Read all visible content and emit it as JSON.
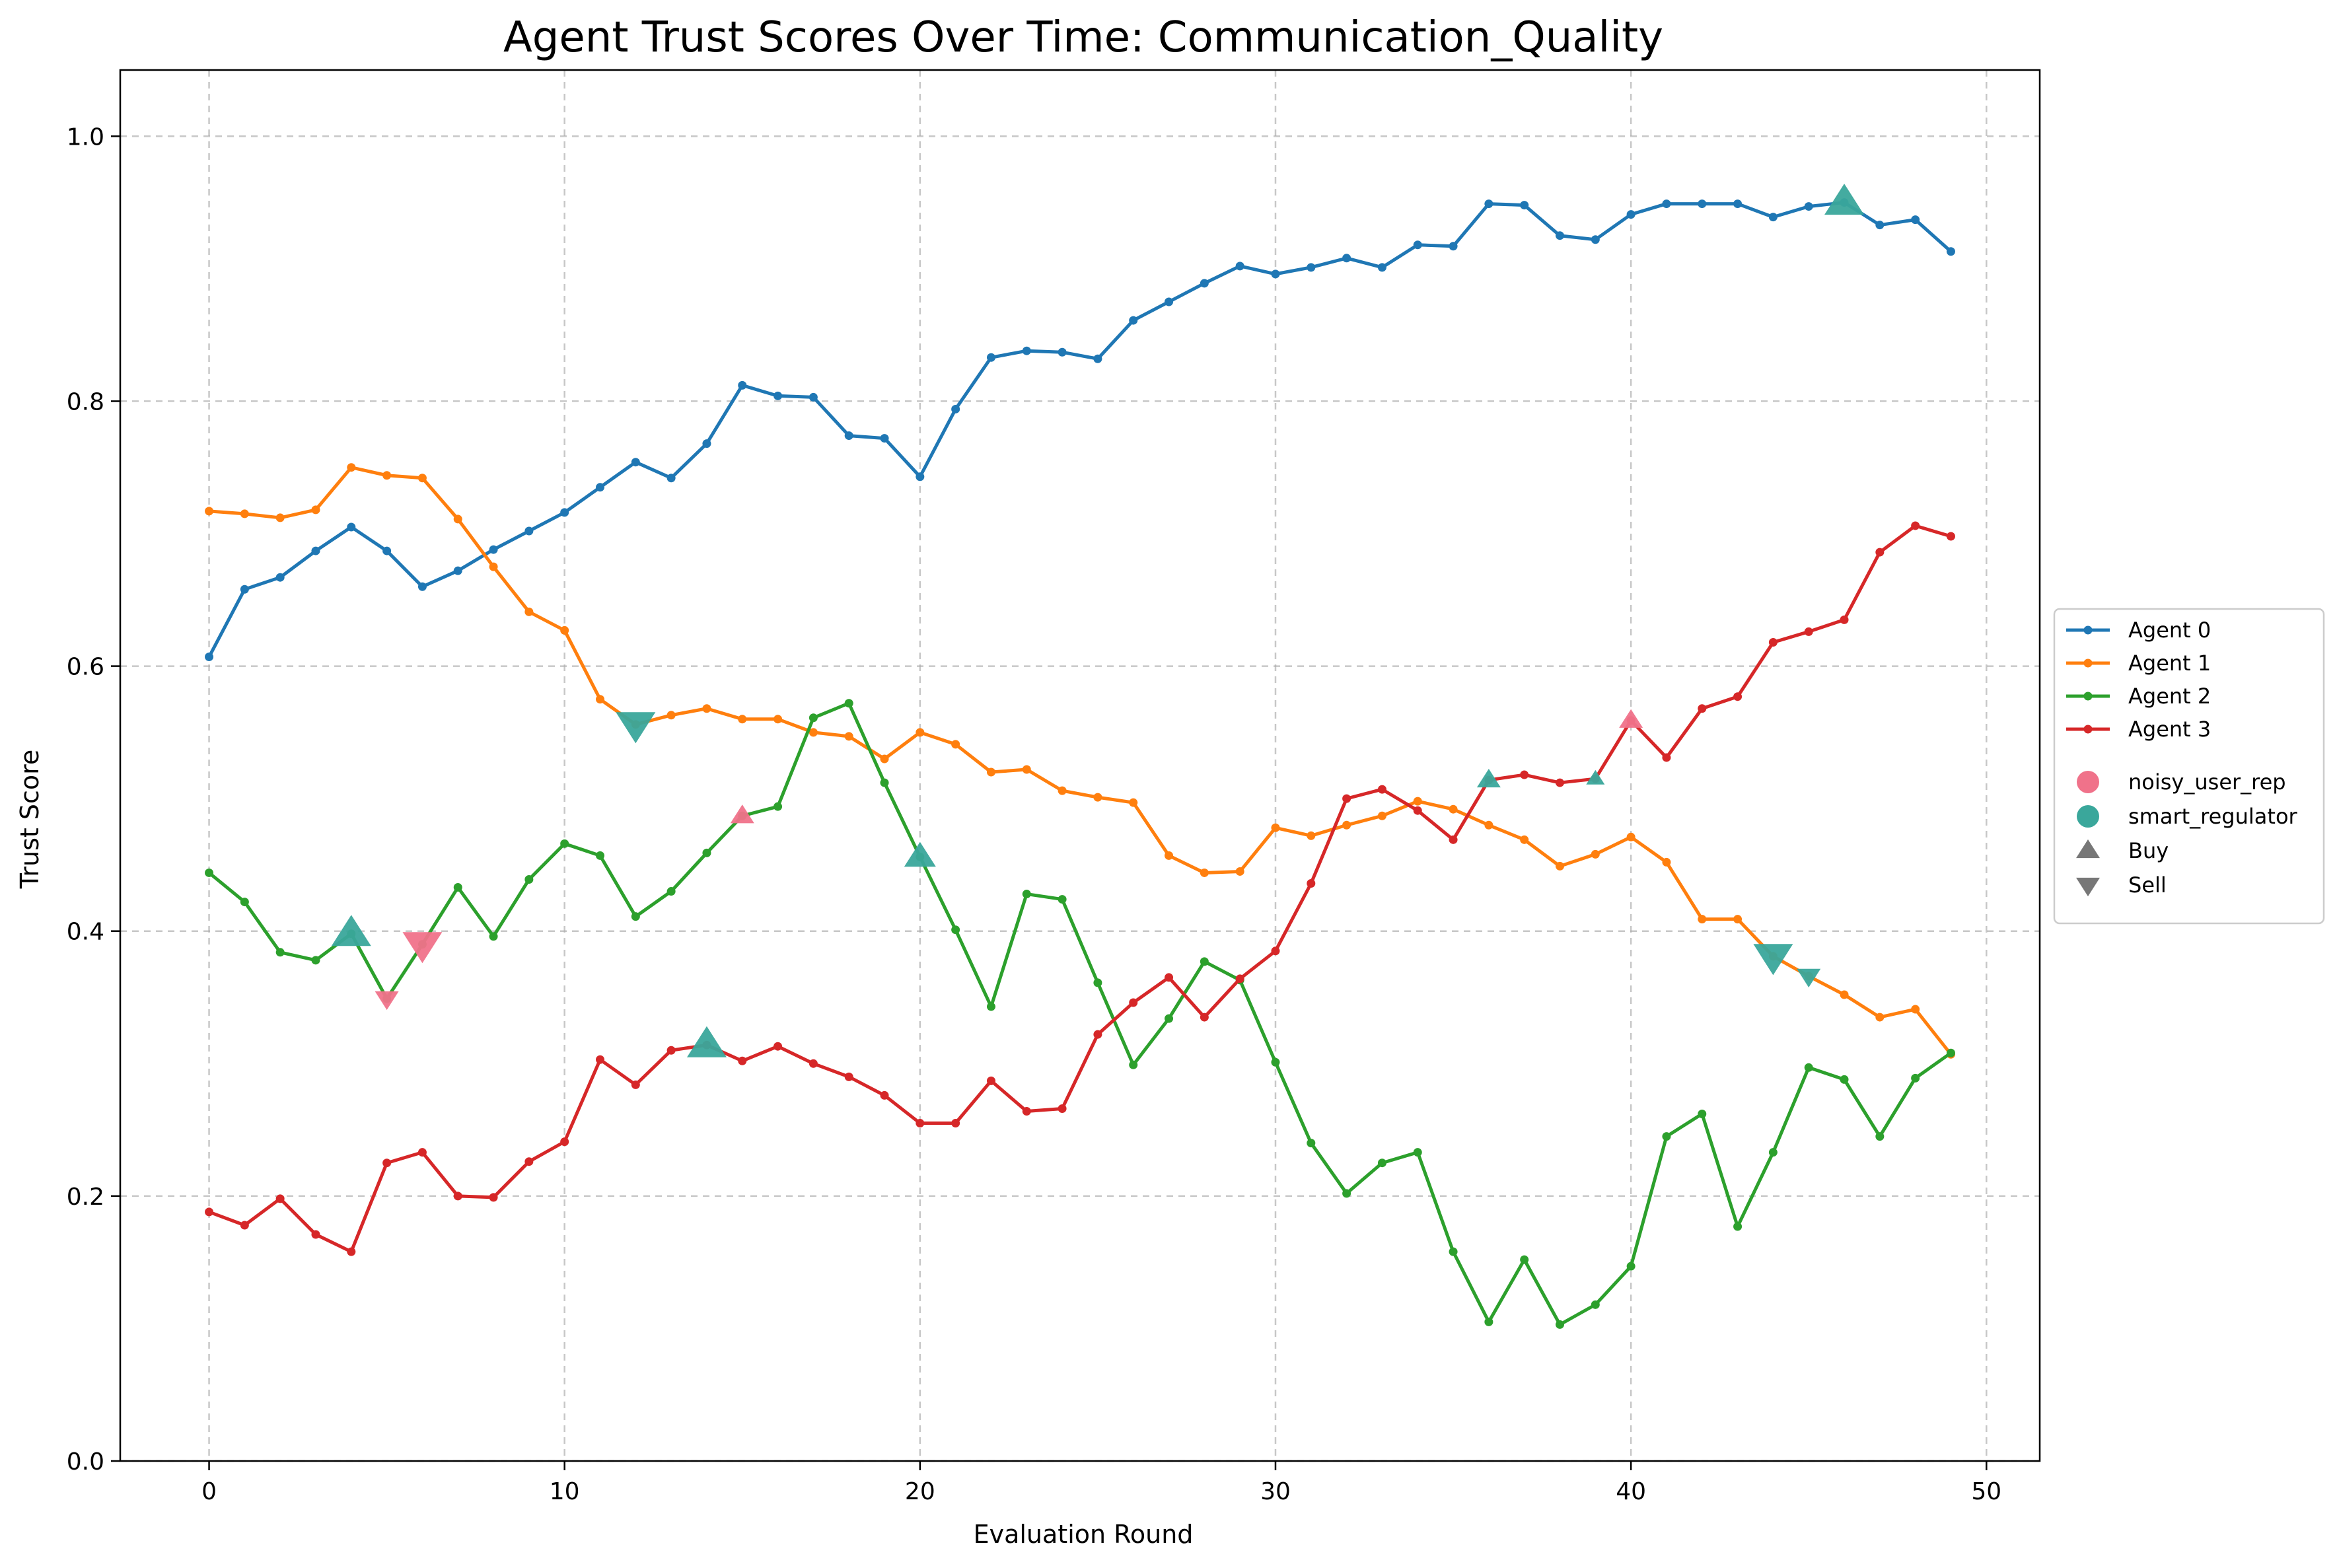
{
  "chart_data": {
    "type": "line",
    "title": "Agent Trust Scores Over Time: Communication_Quality",
    "xlabel": "Evaluation Round",
    "ylabel": "Trust Score",
    "xlim": [
      -2.5,
      51.5
    ],
    "ylim": [
      0.0,
      1.05
    ],
    "xticks": [
      0,
      10,
      20,
      30,
      40,
      50
    ],
    "yticks": [
      0.0,
      0.2,
      0.4,
      0.6,
      0.8,
      1.0
    ],
    "xtick_labels": [
      "0",
      "10",
      "20",
      "30",
      "40",
      "50"
    ],
    "ytick_labels": [
      "0.0",
      "0.2",
      "0.4",
      "0.6",
      "0.8",
      "1.0"
    ],
    "grid": true,
    "legend_position": "right-center outside",
    "x": [
      0,
      1,
      2,
      3,
      4,
      5,
      6,
      7,
      8,
      9,
      10,
      11,
      12,
      13,
      14,
      15,
      16,
      17,
      18,
      19,
      20,
      21,
      22,
      23,
      24,
      25,
      26,
      27,
      28,
      29,
      30,
      31,
      32,
      33,
      34,
      35,
      36,
      37,
      38,
      39,
      40,
      41,
      42,
      43,
      44,
      45,
      46,
      47,
      48,
      49
    ],
    "series": [
      {
        "name": "Agent 0",
        "color": "#1f77b4",
        "values": [
          0.607,
          0.658,
          0.667,
          0.687,
          0.705,
          0.687,
          0.66,
          0.672,
          0.688,
          0.702,
          0.716,
          0.735,
          0.754,
          0.742,
          0.768,
          0.812,
          0.804,
          0.803,
          0.774,
          0.772,
          0.743,
          0.794,
          0.833,
          0.838,
          0.837,
          0.832,
          0.861,
          0.875,
          0.889,
          0.902,
          0.896,
          0.901,
          0.908,
          0.901,
          0.918,
          0.917,
          0.949,
          0.948,
          0.925,
          0.922,
          0.941,
          0.949,
          0.949,
          0.949,
          0.939,
          0.947,
          0.95,
          0.933,
          0.937,
          0.913
        ]
      },
      {
        "name": "Agent 1",
        "color": "#ff7f0e",
        "values": [
          0.717,
          0.715,
          0.712,
          0.718,
          0.75,
          0.744,
          0.742,
          0.711,
          0.675,
          0.641,
          0.627,
          0.575,
          0.556,
          0.563,
          0.568,
          0.56,
          0.56,
          0.55,
          0.547,
          0.53,
          0.55,
          0.541,
          0.52,
          0.522,
          0.506,
          0.501,
          0.497,
          0.457,
          0.444,
          0.445,
          0.478,
          0.472,
          0.48,
          0.487,
          0.498,
          0.492,
          0.48,
          0.469,
          0.449,
          0.458,
          0.471,
          0.452,
          0.409,
          0.409,
          0.381,
          0.366,
          0.352,
          0.335,
          0.341,
          0.307
        ]
      },
      {
        "name": "Agent 2",
        "color": "#2ca02c",
        "values": [
          0.444,
          0.422,
          0.384,
          0.378,
          0.398,
          0.349,
          0.39,
          0.433,
          0.396,
          0.439,
          0.466,
          0.457,
          0.411,
          0.43,
          0.459,
          0.487,
          0.494,
          0.561,
          0.572,
          0.512,
          0.456,
          0.401,
          0.343,
          0.428,
          0.424,
          0.361,
          0.299,
          0.334,
          0.377,
          0.363,
          0.301,
          0.24,
          0.202,
          0.225,
          0.233,
          0.158,
          0.105,
          0.152,
          0.103,
          0.118,
          0.147,
          0.245,
          0.262,
          0.177,
          0.233,
          0.297,
          0.288,
          0.245,
          0.289,
          0.308
        ]
      },
      {
        "name": "Agent 3",
        "color": "#d62728",
        "values": [
          0.188,
          0.178,
          0.198,
          0.171,
          0.158,
          0.225,
          0.233,
          0.2,
          0.199,
          0.226,
          0.241,
          0.303,
          0.284,
          0.31,
          0.314,
          0.302,
          0.313,
          0.3,
          0.29,
          0.276,
          0.255,
          0.255,
          0.287,
          0.264,
          0.266,
          0.322,
          0.346,
          0.365,
          0.335,
          0.364,
          0.385,
          0.436,
          0.5,
          0.507,
          0.491,
          0.469,
          0.514,
          0.518,
          0.512,
          0.515,
          0.559,
          0.531,
          0.568,
          0.577,
          0.618,
          0.626,
          0.635,
          0.686,
          0.706,
          0.698
        ]
      }
    ],
    "annotations": [
      {
        "agent_type": "smart_regulator",
        "action": "Buy",
        "x": 4,
        "y": 0.398,
        "size": "large"
      },
      {
        "agent_type": "noisy_user_rep",
        "action": "Sell",
        "x": 5,
        "y": 0.349,
        "size": "small"
      },
      {
        "agent_type": "noisy_user_rep",
        "action": "Sell",
        "x": 6,
        "y": 0.39,
        "size": "large"
      },
      {
        "agent_type": "smart_regulator",
        "action": "Sell",
        "x": 12,
        "y": 0.556,
        "size": "large"
      },
      {
        "agent_type": "smart_regulator",
        "action": "Buy",
        "x": 14,
        "y": 0.314,
        "size": "large"
      },
      {
        "agent_type": "noisy_user_rep",
        "action": "Buy",
        "x": 15,
        "y": 0.487,
        "size": "small"
      },
      {
        "agent_type": "smart_regulator",
        "action": "Buy",
        "x": 20,
        "y": 0.456,
        "size": "medium"
      },
      {
        "agent_type": "smart_regulator",
        "action": "Buy",
        "x": 36,
        "y": 0.514,
        "size": "small"
      },
      {
        "agent_type": "smart_regulator",
        "action": "Buy",
        "x": 39,
        "y": 0.515,
        "size": "tiny"
      },
      {
        "agent_type": "noisy_user_rep",
        "action": "Buy",
        "x": 40,
        "y": 0.559,
        "size": "small"
      },
      {
        "agent_type": "smart_regulator",
        "action": "Sell",
        "x": 44,
        "y": 0.381,
        "size": "large"
      },
      {
        "agent_type": "smart_regulator",
        "action": "Sell",
        "x": 45,
        "y": 0.366,
        "size": "small"
      },
      {
        "agent_type": "smart_regulator",
        "action": "Buy",
        "x": 46,
        "y": 0.95,
        "size": "large"
      }
    ],
    "legend": {
      "lines": [
        "Agent 0",
        "Agent 1",
        "Agent 2",
        "Agent 3"
      ],
      "agent_types": [
        {
          "label": "noisy_user_rep",
          "color": "#f0728a"
        },
        {
          "label": "smart_regulator",
          "color": "#3aa79b"
        }
      ],
      "actions": [
        {
          "label": "Buy",
          "shape": "triangle-up"
        },
        {
          "label": "Sell",
          "shape": "triangle-down"
        }
      ]
    }
  }
}
